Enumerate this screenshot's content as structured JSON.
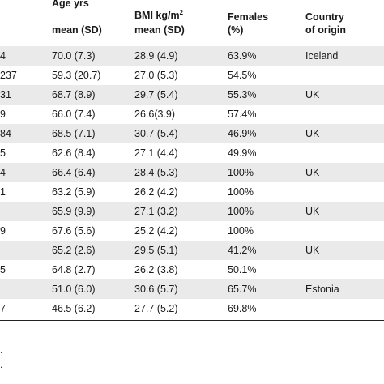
{
  "header": {
    "age_line1": "Age yrs",
    "age_line2": "mean (SD)",
    "bmi_label": "BMI kg/m",
    "bmi_sup": "2",
    "bmi_line2": "mean (SD)",
    "females_line1": "Females",
    "females_line2": "(%)",
    "country_line1": "Country",
    "country_line2": "of origin"
  },
  "rows": [
    {
      "n": "4",
      "age": "70.0 (7.3)",
      "bmi": "28.9 (4.9)",
      "females": "63.9%",
      "country": "Iceland"
    },
    {
      "n": "237",
      "age": "59.3 (20.7)",
      "bmi": "27.0 (5.3)",
      "females": "54.5%",
      "country": ""
    },
    {
      "n": "31",
      "age": "68.7 (8.9)",
      "bmi": "29.7 (5.4)",
      "females": "55.3%",
      "country": "UK"
    },
    {
      "n": "9",
      "age": "66.0 (7.4)",
      "bmi": "26.6(3.9)",
      "females": "57.4%",
      "country": ""
    },
    {
      "n": "84",
      "age": "68.5 (7.1)",
      "bmi": "30.7 (5.4)",
      "females": "46.9%",
      "country": "UK"
    },
    {
      "n": "5",
      "age": "62.6 (8.4)",
      "bmi": "27.1 (4.4)",
      "females": "49.9%",
      "country": ""
    },
    {
      "n": "4",
      "age": "66.4 (6.4)",
      "bmi": "28.4 (5.3)",
      "females": "100%",
      "country": "UK"
    },
    {
      "n": "1",
      "age": "63.2 (5.9)",
      "bmi": "26.2 (4.2)",
      "females": "100%",
      "country": ""
    },
    {
      "n": "",
      "age": "65.9 (9.9)",
      "bmi": "27.1 (3.2)",
      "females": "100%",
      "country": "UK"
    },
    {
      "n": "9",
      "age": "67.6 (5.6)",
      "bmi": "25.2 (4.2)",
      "females": "100%",
      "country": ""
    },
    {
      "n": "",
      "age": "65.2 (2.6)",
      "bmi": "29.5 (5.1)",
      "females": "41.2%",
      "country": "UK"
    },
    {
      "n": "5",
      "age": "64.8 (2.7)",
      "bmi": "26.2 (3.8)",
      "females": "50.1%",
      "country": ""
    },
    {
      "n": "",
      "age": "51.0 (6.0)",
      "bmi": "30.6 (5.7)",
      "females": "65.7%",
      "country": "Estonia"
    },
    {
      "n": "7",
      "age": "46.5 (6.2)",
      "bmi": "27.7 (5.2)",
      "females": "69.8%",
      "country": ""
    }
  ],
  "footnotes": [
    ".",
    "."
  ]
}
